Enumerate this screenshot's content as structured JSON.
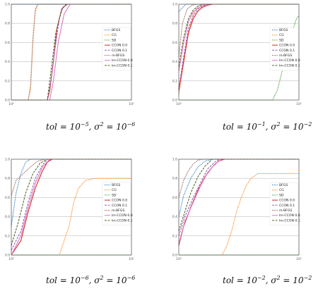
{
  "chart_data": [
    {
      "type": "line",
      "caption": {
        "tol": "10",
        "tol_exp": "−5",
        "sigma": "10",
        "sigma_exp": "−6"
      },
      "xlim": [
        0,
        1
      ],
      "ylim": [
        0,
        1
      ],
      "xticks": [
        "10⁰",
        "10¹"
      ],
      "yticks": [
        "0.0",
        "0.2",
        "0.4",
        "0.6",
        "0.8",
        "1.0"
      ],
      "grid": true,
      "legend_position": "center-right",
      "series": [
        {
          "name": "BFGS",
          "color": "#1f77b4",
          "dash": "1.2,1.2",
          "x": [
            0.0,
            0.04,
            0.2,
            1.0
          ],
          "y": [
            1.0,
            1.0,
            1.0,
            1.0
          ]
        },
        {
          "name": "CG",
          "color": "#ff7f0e",
          "dash": "1.2,1.2",
          "x": [
            0.0,
            0.14,
            0.16,
            0.18,
            0.2,
            0.22,
            1.0
          ],
          "y": [
            0.0,
            0.0,
            0.1,
            0.6,
            0.92,
            1.0,
            1.0
          ]
        },
        {
          "name": "SD",
          "color": "#2ca02c",
          "dash": "1.2,1.2",
          "x": [
            0.0,
            1.0
          ],
          "y": [
            0.0,
            0.0
          ]
        },
        {
          "name": "CCON 0.0",
          "color": "#d62728",
          "dash": "",
          "x": [
            0.0,
            0.3,
            0.32,
            0.35,
            0.38,
            0.42,
            0.46,
            0.48,
            1.0
          ],
          "y": [
            0.0,
            0.0,
            0.1,
            0.4,
            0.75,
            0.95,
            1.0,
            1.0,
            1.0
          ]
        },
        {
          "name": "CCON 0.1",
          "color": "#9467bd",
          "dash": "3,1.5",
          "x": [
            0.0,
            0.3,
            0.33,
            0.36,
            0.4,
            0.43,
            0.47,
            1.0
          ],
          "y": [
            0.0,
            0.0,
            0.2,
            0.5,
            0.85,
            0.97,
            1.0,
            1.0
          ]
        },
        {
          "name": "m-BFGS",
          "color": "#8c564b",
          "dash": "1.2,1.2",
          "x": [
            0.0,
            0.14,
            0.16,
            0.18,
            0.2,
            0.22,
            1.0
          ],
          "y": [
            0.0,
            0.0,
            0.15,
            0.65,
            0.95,
            1.0,
            1.0
          ]
        },
        {
          "name": "lm-CCON 0.0",
          "color": "#e377c2",
          "dash": "",
          "x": [
            0.0,
            0.32,
            0.35,
            0.39,
            0.44,
            0.49,
            0.52,
            1.0
          ],
          "y": [
            0.0,
            0.0,
            0.2,
            0.6,
            0.9,
            1.0,
            1.0,
            1.0
          ]
        },
        {
          "name": "lm-CCON 0.1",
          "color": "#556b2f",
          "dash": "3,1.5",
          "x": [
            0.0,
            0.3,
            0.33,
            0.37,
            0.42,
            0.46,
            1.0
          ],
          "y": [
            0.0,
            0.0,
            0.3,
            0.7,
            0.95,
            1.0,
            1.0
          ]
        }
      ]
    },
    {
      "type": "line",
      "caption": {
        "tol": "10",
        "tol_exp": "−1",
        "sigma": "10",
        "sigma_exp": "−2"
      },
      "xlim": [
        0,
        1
      ],
      "ylim": [
        0,
        1
      ],
      "xticks": [
        "10⁰",
        "10¹"
      ],
      "yticks": [
        "0.0",
        "0.2",
        "0.4",
        "0.6",
        "0.8",
        "1.0"
      ],
      "grid": true,
      "legend_position": "center-right",
      "series": [
        {
          "name": "BFGS",
          "color": "#1f77b4",
          "dash": "1.2,1.2",
          "x": [
            0.0,
            0.02,
            0.06,
            0.1,
            1.0
          ],
          "y": [
            0.92,
            0.95,
            1.0,
            1.0,
            1.0
          ]
        },
        {
          "name": "CG",
          "color": "#ff7f0e",
          "dash": "1.2,1.2",
          "x": [
            0.0,
            0.03,
            0.08,
            0.12,
            0.16,
            0.2,
            1.0
          ],
          "y": [
            0.05,
            0.3,
            0.7,
            0.9,
            0.98,
            1.0,
            1.0
          ]
        },
        {
          "name": "SD",
          "color": "#2ca02c",
          "dash": "1.2,1.2",
          "x": [
            0.0,
            0.78,
            0.82,
            0.86,
            0.9,
            0.94,
            0.98,
            1.0
          ],
          "y": [
            0.0,
            0.0,
            0.1,
            0.3,
            0.5,
            0.7,
            0.85,
            0.88
          ]
        },
        {
          "name": "CCON 0.0",
          "color": "#d62728",
          "dash": "",
          "x": [
            0.0,
            0.04,
            0.08,
            0.12,
            0.16,
            0.2,
            0.24,
            0.28,
            1.0
          ],
          "y": [
            0.1,
            0.4,
            0.7,
            0.85,
            0.93,
            0.97,
            0.99,
            1.0,
            1.0
          ]
        },
        {
          "name": "CCON 0.1",
          "color": "#9467bd",
          "dash": "3,1.5",
          "x": [
            0.0,
            0.04,
            0.08,
            0.12,
            0.16,
            0.2,
            0.24,
            1.0
          ],
          "y": [
            0.12,
            0.45,
            0.75,
            0.88,
            0.95,
            0.98,
            1.0,
            1.0
          ]
        },
        {
          "name": "m-BFGS",
          "color": "#8c564b",
          "dash": "1.2,1.2",
          "x": [
            0.0,
            0.03,
            0.07,
            0.11,
            0.15,
            1.0
          ],
          "y": [
            0.45,
            0.8,
            0.95,
            0.99,
            1.0,
            1.0
          ]
        },
        {
          "name": "lm-CCON 0.0",
          "color": "#e377c2",
          "dash": "",
          "x": [
            0.0,
            0.04,
            0.08,
            0.12,
            0.16,
            0.2,
            0.25,
            1.0
          ],
          "y": [
            0.3,
            0.6,
            0.82,
            0.92,
            0.96,
            0.99,
            1.0,
            1.0
          ]
        },
        {
          "name": "lm-CCON 0.1",
          "color": "#556b2f",
          "dash": "3,1.5",
          "x": [
            0.0,
            0.04,
            0.08,
            0.12,
            0.16,
            0.2,
            1.0
          ],
          "y": [
            0.35,
            0.65,
            0.85,
            0.94,
            0.98,
            1.0,
            1.0
          ]
        }
      ]
    },
    {
      "type": "line",
      "caption": {
        "tol": "10",
        "tol_exp": "−6",
        "sigma": "10",
        "sigma_exp": "−6"
      },
      "xlim": [
        0,
        1
      ],
      "ylim": [
        0,
        1
      ],
      "xticks": [
        "10⁰",
        "10¹"
      ],
      "yticks": [
        "0.0",
        "0.2",
        "0.4",
        "0.6",
        "0.8",
        "1.0"
      ],
      "grid": true,
      "legend_position": "center-right",
      "series": [
        {
          "name": "BFGS",
          "color": "#1f77b4",
          "dash": "1.2,1.2",
          "x": [
            0.0,
            0.04,
            0.08,
            0.12,
            0.16,
            1.0
          ],
          "y": [
            0.3,
            0.65,
            0.85,
            0.97,
            1.0,
            1.0
          ]
        },
        {
          "name": "CG",
          "color": "#ff7f0e",
          "dash": "1.2,1.2",
          "x": [
            0.0,
            0.4,
            0.44,
            0.48,
            0.52,
            0.56,
            0.62,
            0.7,
            0.8,
            1.0
          ],
          "y": [
            0.0,
            0.0,
            0.15,
            0.3,
            0.55,
            0.7,
            0.78,
            0.8,
            0.8,
            0.8
          ]
        },
        {
          "name": "SD",
          "color": "#2ca02c",
          "dash": "1.2,1.2",
          "x": [
            0.0,
            1.0
          ],
          "y": [
            0.0,
            0.0
          ]
        },
        {
          "name": "CCON 0.0",
          "color": "#d62728",
          "dash": "",
          "x": [
            0.0,
            0.08,
            0.14,
            0.2,
            0.26,
            0.3,
            0.34,
            1.0
          ],
          "y": [
            0.0,
            0.15,
            0.45,
            0.7,
            0.88,
            0.97,
            1.0,
            1.0
          ]
        },
        {
          "name": "CCON 0.1",
          "color": "#9467bd",
          "dash": "3,1.5",
          "x": [
            0.0,
            0.08,
            0.14,
            0.2,
            0.26,
            0.3,
            1.0
          ],
          "y": [
            0.05,
            0.25,
            0.55,
            0.8,
            0.94,
            1.0,
            1.0
          ]
        },
        {
          "name": "m-BFGS",
          "color": "#8c564b",
          "dash": "1.2,1.2",
          "x": [
            0.0,
            0.04,
            0.1,
            0.16,
            0.22,
            0.28,
            1.0
          ],
          "y": [
            0.62,
            0.78,
            0.85,
            0.92,
            0.98,
            1.0,
            1.0
          ]
        },
        {
          "name": "lm-CCON 0.0",
          "color": "#e377c2",
          "dash": "",
          "x": [
            0.0,
            0.08,
            0.14,
            0.2,
            0.26,
            0.32,
            1.0
          ],
          "y": [
            0.0,
            0.2,
            0.5,
            0.75,
            0.92,
            1.0,
            1.0
          ]
        },
        {
          "name": "lm-CCON 0.1",
          "color": "#556b2f",
          "dash": "3,1.5",
          "x": [
            0.0,
            0.06,
            0.12,
            0.18,
            0.24,
            0.3,
            1.0
          ],
          "y": [
            0.1,
            0.35,
            0.65,
            0.85,
            0.96,
            1.0,
            1.0
          ]
        }
      ]
    },
    {
      "type": "line",
      "caption": {
        "tol": "10",
        "tol_exp": "−2",
        "sigma": "10",
        "sigma_exp": "−2"
      },
      "xlim": [
        0,
        1
      ],
      "ylim": [
        0,
        1
      ],
      "xticks": [
        "10⁰",
        "10¹"
      ],
      "yticks": [
        "0.0",
        "0.2",
        "0.4",
        "0.6",
        "0.8",
        "1.0"
      ],
      "grid": true,
      "legend_position": "center-right",
      "series": [
        {
          "name": "BFGS",
          "color": "#1f77b4",
          "dash": "1.2,1.2",
          "x": [
            0.0,
            0.04,
            0.1,
            0.16,
            0.22,
            0.28,
            1.0
          ],
          "y": [
            0.4,
            0.62,
            0.8,
            0.92,
            0.98,
            1.0,
            1.0
          ]
        },
        {
          "name": "CG",
          "color": "#ff7f0e",
          "dash": "1.2,1.2",
          "x": [
            0.0,
            0.36,
            0.4,
            0.44,
            0.48,
            0.52,
            0.56,
            0.6,
            0.66,
            0.7,
            1.0
          ],
          "y": [
            0.0,
            0.0,
            0.1,
            0.25,
            0.45,
            0.6,
            0.72,
            0.8,
            0.85,
            0.85,
            0.85
          ]
        },
        {
          "name": "SD",
          "color": "#2ca02c",
          "dash": "1.2,1.2",
          "x": [
            0.0,
            1.0
          ],
          "y": [
            0.0,
            0.0
          ]
        },
        {
          "name": "CCON 0.0",
          "color": "#d62728",
          "dash": "",
          "x": [
            0.0,
            0.04,
            0.1,
            0.16,
            0.22,
            0.28,
            0.33,
            0.38,
            1.0
          ],
          "y": [
            0.1,
            0.3,
            0.5,
            0.68,
            0.82,
            0.92,
            0.98,
            1.0,
            1.0
          ]
        },
        {
          "name": "CCON 0.1",
          "color": "#9467bd",
          "dash": "3,1.5",
          "x": [
            0.0,
            0.05,
            0.12,
            0.18,
            0.24,
            0.3,
            0.34,
            1.0
          ],
          "y": [
            0.2,
            0.4,
            0.6,
            0.75,
            0.9,
            0.97,
            1.0,
            1.0
          ]
        },
        {
          "name": "m-BFGS",
          "color": "#8c564b",
          "dash": "1.2,1.2",
          "x": [
            0.0,
            0.04,
            0.08,
            0.12,
            0.16,
            0.2,
            1.0
          ],
          "y": [
            0.6,
            0.78,
            0.88,
            0.95,
            0.99,
            1.0,
            1.0
          ]
        },
        {
          "name": "lm-CCON 0.0",
          "color": "#e377c2",
          "dash": "",
          "x": [
            0.0,
            0.05,
            0.12,
            0.18,
            0.24,
            0.3,
            0.36,
            1.0
          ],
          "y": [
            0.12,
            0.35,
            0.55,
            0.72,
            0.86,
            0.95,
            1.0,
            1.0
          ]
        },
        {
          "name": "lm-CCON 0.1",
          "color": "#556b2f",
          "dash": "3,1.5",
          "x": [
            0.0,
            0.05,
            0.1,
            0.16,
            0.22,
            0.28,
            1.0
          ],
          "y": [
            0.25,
            0.45,
            0.65,
            0.82,
            0.93,
            1.0,
            1.0
          ]
        }
      ]
    }
  ],
  "tol_var": "tol",
  "sigma_var": "σ"
}
